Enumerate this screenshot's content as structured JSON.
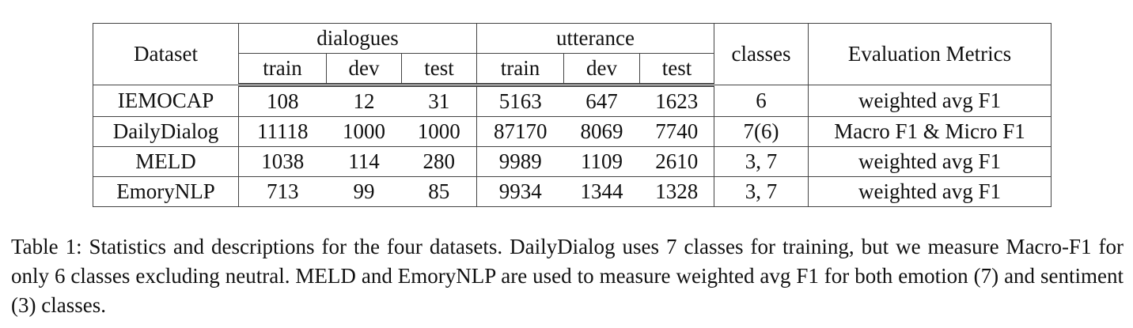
{
  "table": {
    "header": {
      "top": [
        "Dataset",
        "dialogues",
        "utterance",
        "classes",
        "Evaluation Metrics"
      ],
      "sub": [
        "train",
        "dev",
        "test",
        "train",
        "dev",
        "test"
      ]
    },
    "rows": [
      [
        "IEMOCAP",
        108,
        12,
        31,
        5163,
        647,
        1623,
        6,
        "weighted avg F1"
      ],
      [
        "DailyDialog",
        11118,
        1000,
        1000,
        87170,
        8069,
        7740,
        "7(6)",
        "Macro F1 & Micro F1"
      ],
      [
        "MELD",
        1038,
        114,
        280,
        9989,
        1109,
        2610,
        "3, 7",
        "weighted avg F1"
      ],
      [
        "EmoryNLP",
        713,
        99,
        85,
        9934,
        1344,
        1328,
        "3, 7",
        "weighted avg F1"
      ]
    ]
  },
  "caption": "Table 1: Statistics and descriptions for the four datasets. DailyDialog uses 7 classes for training, but we measure Macro-F1 for only 6 classes excluding neutral. MELD and EmoryNLP are used to measure weighted avg F1 for both emotion (7) and sentiment (3) classes."
}
